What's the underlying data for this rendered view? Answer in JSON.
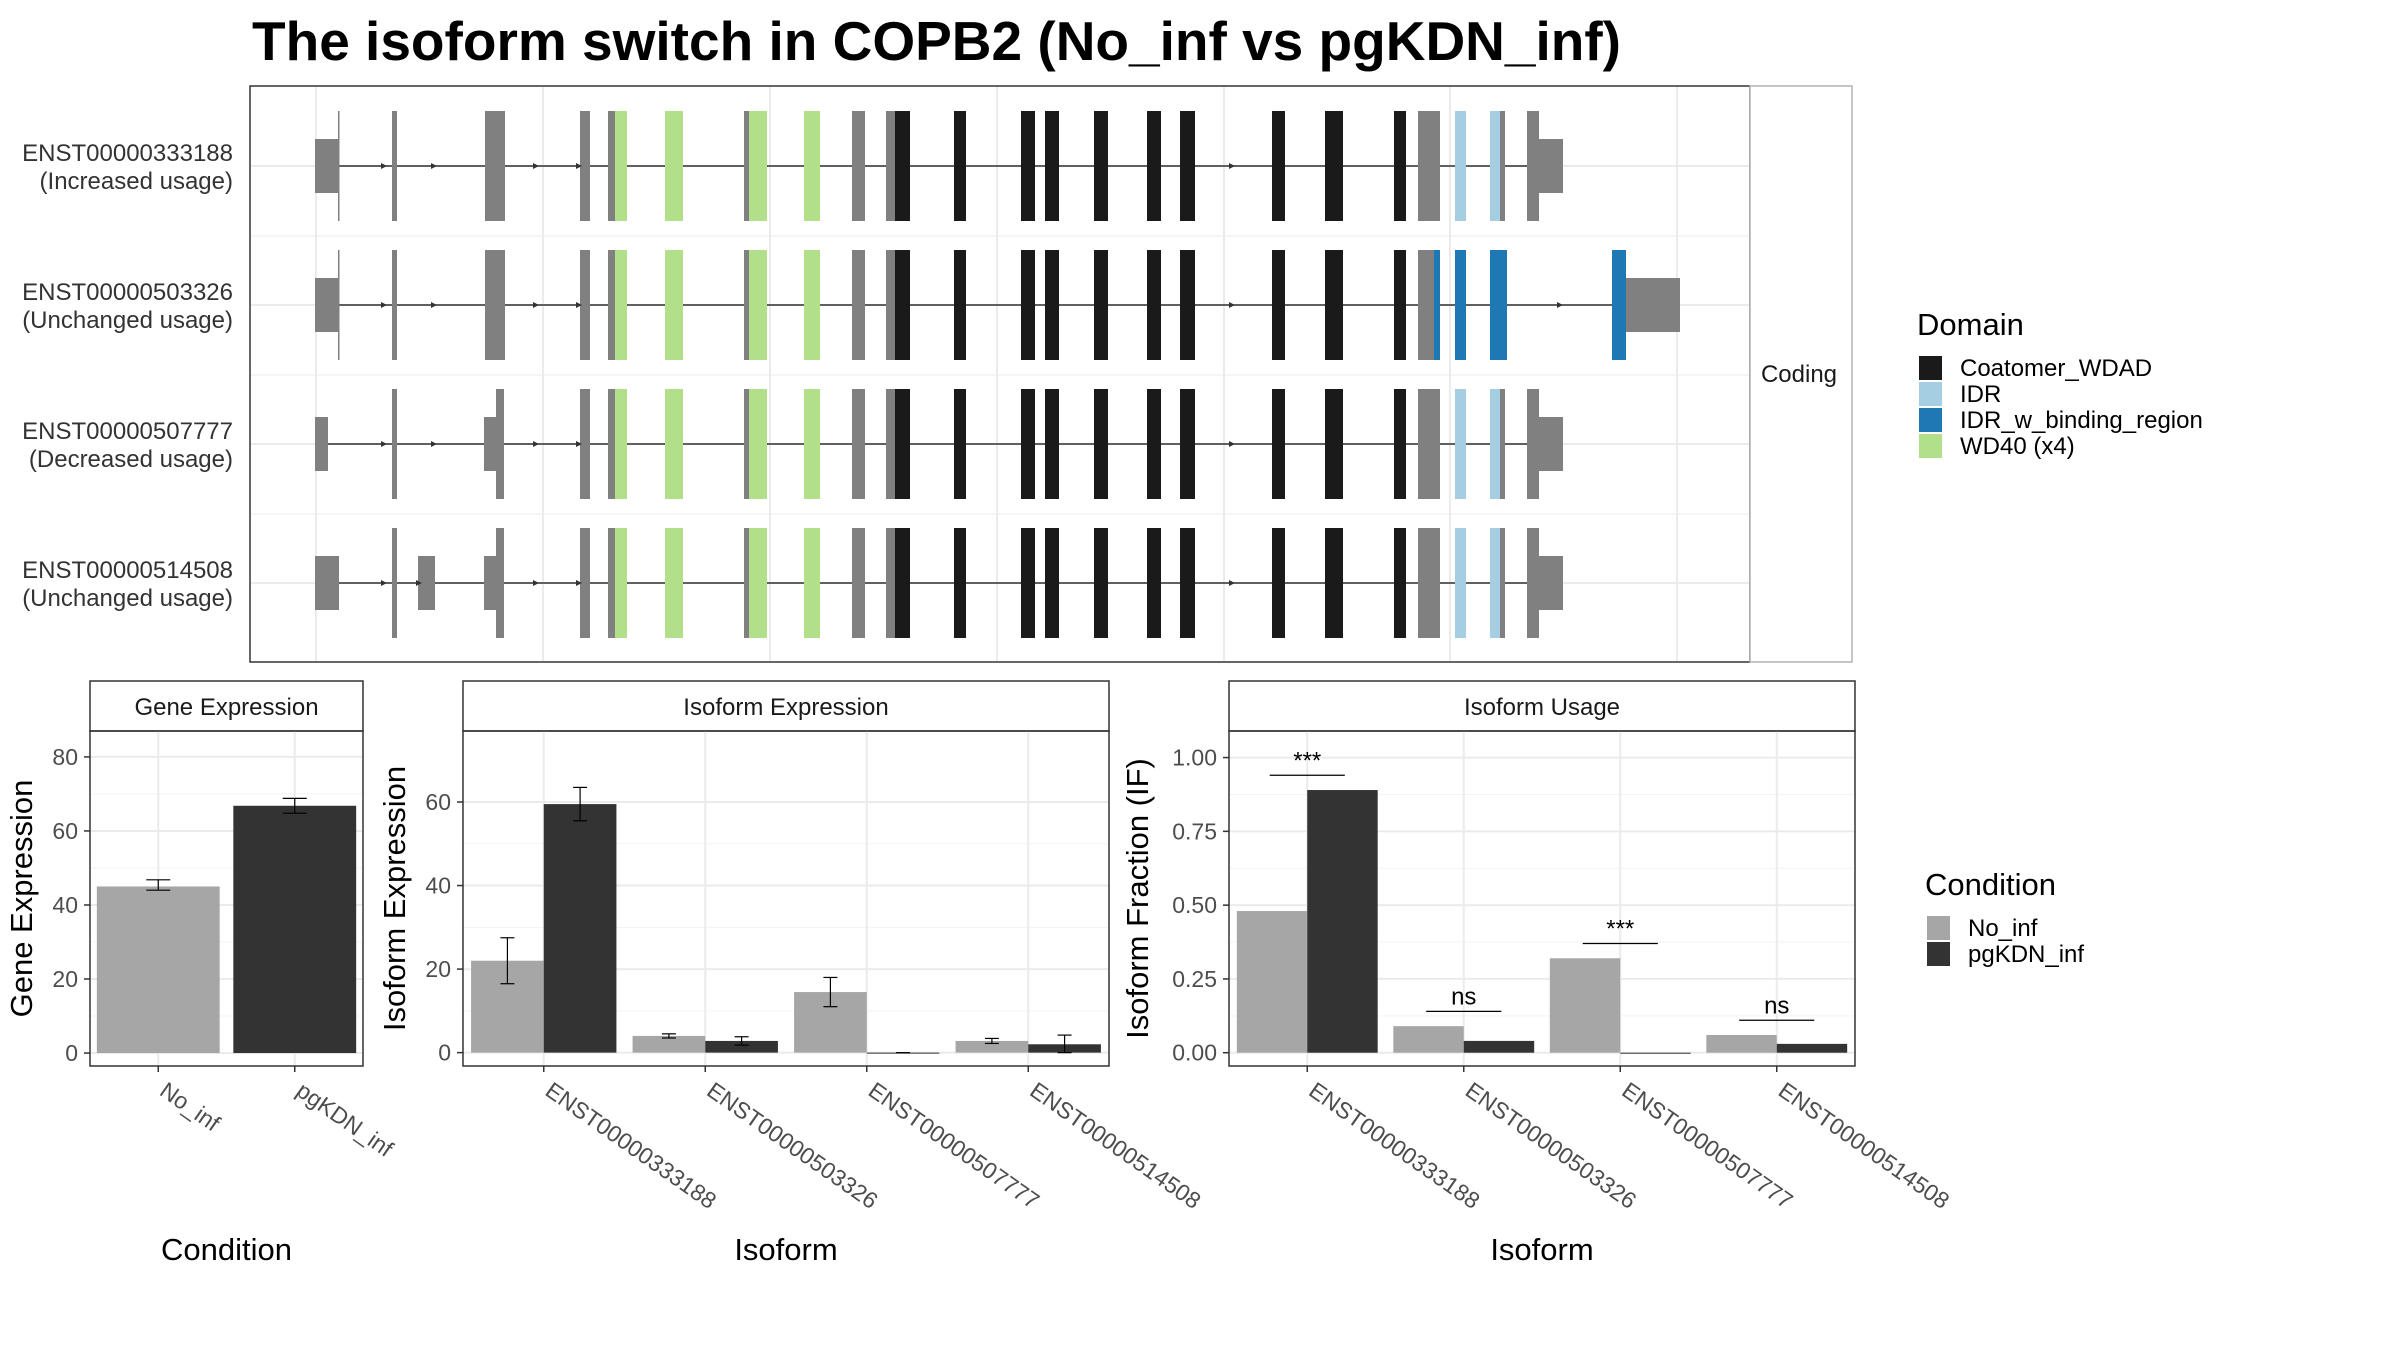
{
  "title": "The isoform switch in COPB2 (No_inf vs pgKDN_inf)",
  "transcript_panel": {
    "strip": "Coding",
    "transcripts": [
      {
        "id": "ENST00000333188",
        "usage": "(Increased usage)"
      },
      {
        "id": "ENST00000503326",
        "usage": "(Unchanged usage)"
      },
      {
        "id": "ENST00000507777",
        "usage": "(Decreased usage)"
      },
      {
        "id": "ENST00000514508",
        "usage": "(Unchanged usage)"
      }
    ]
  },
  "domain_legend": {
    "title": "Domain",
    "items": [
      {
        "label": "Coatomer_WDAD",
        "color": "#1a1a1a"
      },
      {
        "label": "IDR",
        "color": "#a6cee3"
      },
      {
        "label": "IDR_w_binding_region",
        "color": "#1f78b4"
      },
      {
        "label": "WD40 (x4)",
        "color": "#b2df8a"
      }
    ]
  },
  "condition_legend": {
    "title": "Condition",
    "items": [
      {
        "label": "No_inf",
        "color": "#a6a6a6"
      },
      {
        "label": "pgKDN_inf",
        "color": "#333333"
      }
    ]
  },
  "chart_data": [
    {
      "type": "bar",
      "panel": "Gene Expression",
      "categories": [
        "No_inf",
        "pgKDN_inf"
      ],
      "values": [
        45.0,
        66.8
      ],
      "errors": [
        [
          44.0,
          46.8
        ],
        [
          64.8,
          68.8
        ]
      ],
      "xlabel": "Condition",
      "ylabel": "Gene Expression",
      "yticks": [
        0,
        20,
        40,
        60,
        80
      ],
      "ylim": [
        -3.5,
        87
      ]
    },
    {
      "type": "bar",
      "panel": "Isoform Expression",
      "categories": [
        "ENST00000333188",
        "ENST00000503326",
        "ENST00000507777",
        "ENST00000514508"
      ],
      "series": [
        {
          "name": "No_inf",
          "values": [
            22.0,
            4.0,
            14.5,
            2.8
          ],
          "errors": [
            [
              16.5,
              27.5
            ],
            [
              3.5,
              4.5
            ],
            [
              11.0,
              18.0
            ],
            [
              2.2,
              3.4
            ]
          ]
        },
        {
          "name": "pgKDN_inf",
          "values": [
            59.5,
            2.8,
            0.0,
            2.0
          ],
          "errors": [
            [
              55.5,
              63.5
            ],
            [
              1.8,
              3.8
            ],
            [
              0.0,
              0.0
            ],
            [
              0.0,
              4.2
            ]
          ]
        }
      ],
      "xlabel": "Isoform",
      "ylabel": "Isoform Expression",
      "yticks": [
        0,
        20,
        40,
        60
      ],
      "ylim": [
        -3.2,
        77
      ]
    },
    {
      "type": "bar",
      "panel": "Isoform Usage",
      "categories": [
        "ENST00000333188",
        "ENST00000503326",
        "ENST00000507777",
        "ENST00000514508"
      ],
      "series": [
        {
          "name": "No_inf",
          "values": [
            0.48,
            0.09,
            0.32,
            0.06
          ]
        },
        {
          "name": "pgKDN_inf",
          "values": [
            0.89,
            0.04,
            0.0,
            0.03
          ]
        }
      ],
      "significance": [
        "***",
        "ns",
        "***",
        "ns"
      ],
      "xlabel": "Isoform",
      "ylabel": "Isoform Fraction (IF)",
      "yticks": [
        0.0,
        0.25,
        0.5,
        0.75,
        1.0
      ],
      "ytick_labels": [
        "0.00",
        "0.25",
        "0.50",
        "0.75",
        "1.00"
      ],
      "ylim": [
        -0.045,
        1.09
      ]
    }
  ]
}
